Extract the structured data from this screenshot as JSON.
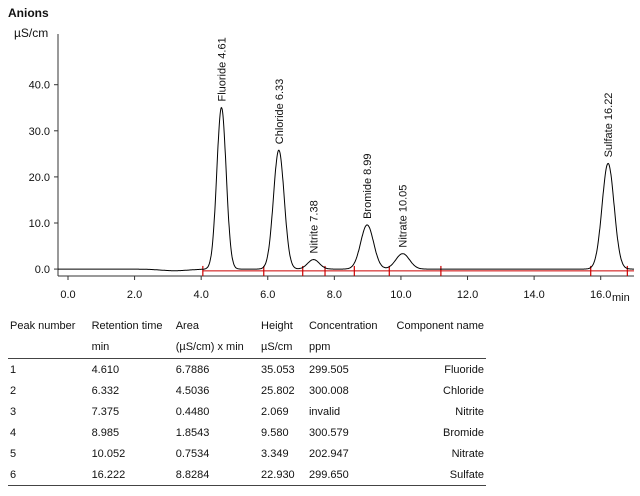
{
  "chart_data": {
    "type": "line",
    "title": "Anions",
    "ylabel": "µS/cm",
    "xlabel": "min",
    "xlim": [
      -0.3,
      17.0
    ],
    "ylim": [
      -1.5,
      51
    ],
    "x_ticks": [
      "0.0",
      "2.0",
      "4.0",
      "6.0",
      "8.0",
      "10.0",
      "12.0",
      "14.0",
      "16.0"
    ],
    "y_ticks": [
      "0.0",
      "10.0",
      "20.0",
      "30.0",
      "40.0"
    ],
    "series": [
      {
        "color": "#000000",
        "peaks": [
          {
            "label": "Fluoride 4.61",
            "rt": 4.61,
            "height": 35.053
          },
          {
            "label": "Chloride 6.33",
            "rt": 6.332,
            "height": 25.802
          },
          {
            "label": "Nitrite 7.38",
            "rt": 7.375,
            "height": 2.069
          },
          {
            "label": "Bromide 8.99",
            "rt": 8.985,
            "height": 9.58
          },
          {
            "label": "Nitrate 10.05",
            "rt": 10.052,
            "height": 3.349
          },
          {
            "label": "Sulfate 16.22",
            "rt": 16.222,
            "height": 22.93
          }
        ]
      }
    ],
    "integration_marks": [
      4.05,
      5.88,
      7.05,
      7.72,
      8.6,
      9.65,
      11.2,
      15.7,
      16.8
    ],
    "integration_color": "#cc0000"
  },
  "table": {
    "headers": [
      "Peak number",
      "Retention time",
      "Area",
      "Height",
      "Concentration",
      "Component name"
    ],
    "units": [
      "",
      "min",
      "(µS/cm) x min",
      "µS/cm",
      "ppm",
      ""
    ],
    "rows": [
      [
        "1",
        "4.610",
        "6.7886",
        "35.053",
        "299.505",
        "Fluoride"
      ],
      [
        "2",
        "6.332",
        "4.5036",
        "25.802",
        "300.008",
        "Chloride"
      ],
      [
        "3",
        "7.375",
        "0.4480",
        "2.069",
        "invalid",
        "Nitrite"
      ],
      [
        "4",
        "8.985",
        "1.8543",
        "9.580",
        "300.579",
        "Bromide"
      ],
      [
        "5",
        "10.052",
        "0.7534",
        "3.349",
        "202.947",
        "Nitrate"
      ],
      [
        "6",
        "16.222",
        "8.8284",
        "22.930",
        "299.650",
        "Sulfate"
      ]
    ]
  }
}
